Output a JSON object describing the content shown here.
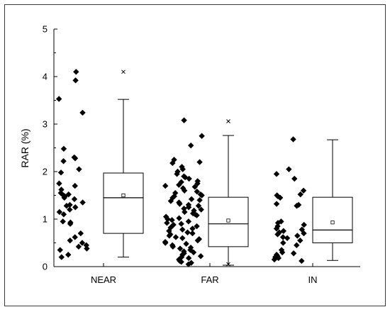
{
  "chart_data": {
    "type": "box-scatter",
    "ylabel": "RAR (%)",
    "xlabel": "",
    "ylim": [
      0,
      5
    ],
    "yticks": [
      "0",
      "1",
      "2",
      "3",
      "4",
      "5"
    ],
    "categories": [
      "NEAR",
      "FAR",
      "IN"
    ],
    "groups": [
      {
        "name": "NEAR",
        "points": [
          4.1,
          3.92,
          3.53,
          3.24,
          2.48,
          2.3,
          2.28,
          2.22,
          2.05,
          1.98,
          1.75,
          1.7,
          1.62,
          1.55,
          1.52,
          1.5,
          1.48,
          1.45,
          1.42,
          1.35,
          1.3,
          1.28,
          1.25,
          1.2,
          1.15,
          1.1,
          0.95,
          0.93,
          0.9,
          0.7,
          0.62,
          0.55,
          0.5,
          0.45,
          0.42,
          0.38,
          0.35,
          0.25,
          0.2
        ],
        "box": {
          "whisker_low": 0.2,
          "q1": 0.7,
          "median": 1.45,
          "mean": 1.5,
          "q3": 1.97,
          "whisker_high": 3.52,
          "extremes": [
            4.1
          ]
        }
      },
      {
        "name": "FAR",
        "points": [
          3.08,
          2.75,
          2.55,
          2.25,
          2.2,
          2.18,
          2.1,
          2.05,
          2.0,
          1.95,
          1.9,
          1.88,
          1.85,
          1.8,
          1.78,
          1.75,
          1.72,
          1.7,
          1.68,
          1.65,
          1.6,
          1.58,
          1.55,
          1.52,
          1.5,
          1.48,
          1.45,
          1.42,
          1.4,
          1.38,
          1.35,
          1.32,
          1.3,
          1.28,
          1.25,
          1.22,
          1.2,
          1.18,
          1.15,
          1.12,
          1.1,
          1.08,
          1.05,
          1.02,
          1.0,
          0.98,
          0.95,
          0.92,
          0.9,
          0.88,
          0.85,
          0.82,
          0.8,
          0.78,
          0.75,
          0.72,
          0.7,
          0.68,
          0.65,
          0.62,
          0.6,
          0.58,
          0.55,
          0.52,
          0.5,
          0.48,
          0.45,
          0.42,
          0.4,
          0.38,
          0.35,
          0.32,
          0.3,
          0.28,
          0.25,
          0.22,
          0.2,
          0.18,
          0.15,
          0.12,
          0.1,
          0.08,
          0.05
        ],
        "box": {
          "whisker_low": 0.03,
          "q1": 0.42,
          "median": 0.9,
          "mean": 0.97,
          "q3": 1.46,
          "whisker_high": 2.76,
          "extremes": [
            3.06,
            0.05
          ]
        }
      },
      {
        "name": "IN",
        "points": [
          2.68,
          2.05,
          1.95,
          1.85,
          1.6,
          1.52,
          1.5,
          1.48,
          1.45,
          1.32,
          1.3,
          1.28,
          0.95,
          0.92,
          0.88,
          0.85,
          0.8,
          0.78,
          0.75,
          0.72,
          0.7,
          0.68,
          0.65,
          0.62,
          0.6,
          0.55,
          0.5,
          0.45,
          0.35,
          0.3,
          0.28,
          0.25,
          0.22,
          0.2,
          0.18,
          0.15,
          0.12
        ],
        "box": {
          "whisker_low": 0.13,
          "q1": 0.5,
          "median": 0.77,
          "mean": 0.93,
          "q3": 1.46,
          "whisker_high": 2.67,
          "extremes": []
        }
      }
    ],
    "grid": false,
    "legend": "none"
  }
}
